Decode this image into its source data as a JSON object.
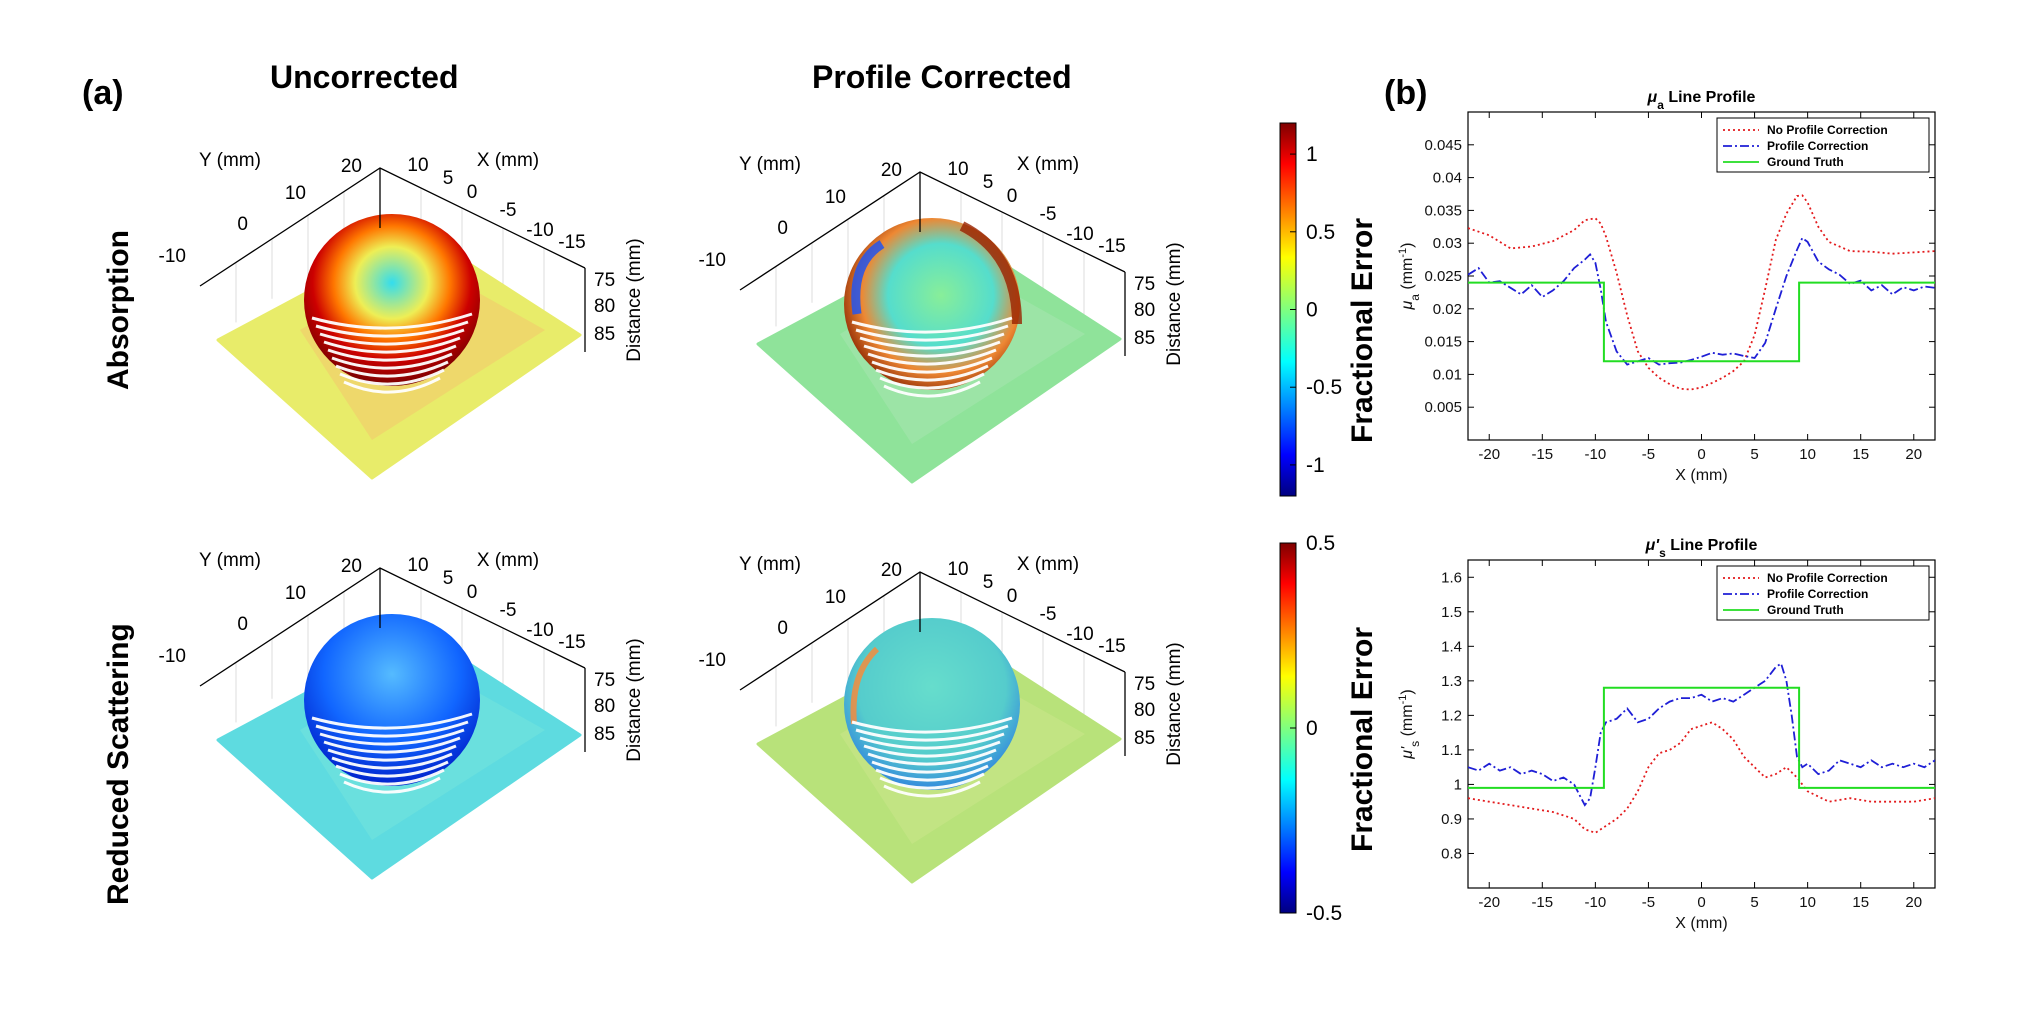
{
  "figure": {
    "label_a": "(a)",
    "label_b": "(b)",
    "col_uncorrected": "Uncorrected",
    "col_corrected": "Profile Corrected",
    "row_absorption": "Absorption",
    "row_scattering": "Reduced Scattering",
    "axis_y_mm": "Y (mm)",
    "axis_x_mm": "X (mm)",
    "axis_distance": "Distance (mm)",
    "fractional_error": "Fractional Error",
    "y_ticks_3d": [
      "20",
      "10",
      "0",
      "-10"
    ],
    "x_ticks_3d": [
      "10",
      "5",
      "0",
      "-5",
      "-10",
      "-15"
    ],
    "z_ticks_3d": [
      "75",
      "80",
      "85"
    ],
    "colorbar_top": {
      "ticks": [
        "1",
        "0.5",
        "0",
        "-0.5",
        "-1"
      ],
      "range": [
        -1.2,
        1.2
      ]
    },
    "colorbar_bottom": {
      "ticks": [
        "0.5",
        "0",
        "-0.5"
      ],
      "range": [
        -0.5,
        0.5
      ]
    },
    "colors": {
      "red": "#e31a1c",
      "blue": "#1f1fd6",
      "green": "#22dd22"
    }
  },
  "chart_data": [
    {
      "type": "line",
      "title_main": "μ",
      "title_sub": "a",
      "title_rest": " Line Profile",
      "xlabel": "X (mm)",
      "ylabel_main": "μ",
      "ylabel_sub": "a",
      "ylabel_unit_pre": " (mm",
      "ylabel_unit_sup": "-1",
      "ylabel_unit_post": ")",
      "xlim": [
        -22,
        22
      ],
      "ylim": [
        0,
        0.05
      ],
      "xticks": [
        -20,
        -15,
        -10,
        -5,
        0,
        5,
        10,
        15,
        20
      ],
      "yticks": [
        0.005,
        0.01,
        0.015,
        0.02,
        0.025,
        0.03,
        0.035,
        0.04,
        0.045
      ],
      "legend": "top-right",
      "series": [
        {
          "name": "No Profile Correction",
          "color": "#e31a1c",
          "dash": "2,3",
          "x": [
            -22,
            -20,
            -18,
            -16,
            -14,
            -12,
            -11,
            -10,
            -9.5,
            -9,
            -8,
            -7,
            -6,
            -5,
            -4,
            -3,
            -2,
            -1,
            0,
            1,
            2,
            3,
            4,
            5,
            6,
            7,
            8,
            9,
            9.5,
            10,
            11,
            12,
            14,
            16,
            18,
            20,
            22
          ],
          "y": [
            0.0323,
            0.0312,
            0.0292,
            0.0295,
            0.0303,
            0.032,
            0.0335,
            0.0338,
            0.033,
            0.031,
            0.0255,
            0.019,
            0.0135,
            0.011,
            0.0095,
            0.0085,
            0.0078,
            0.0077,
            0.008,
            0.0087,
            0.0095,
            0.0105,
            0.012,
            0.016,
            0.023,
            0.0305,
            0.0345,
            0.0372,
            0.0373,
            0.0362,
            0.0325,
            0.0302,
            0.0288,
            0.0287,
            0.0284,
            0.0286,
            0.0288
          ]
        },
        {
          "name": "Profile Correction",
          "color": "#1f1fd6",
          "dash": "9,3,2,3",
          "x": [
            -22,
            -21,
            -20,
            -19,
            -18,
            -17,
            -16,
            -15,
            -14,
            -13,
            -12,
            -11,
            -10.5,
            -10,
            -9.5,
            -9,
            -8,
            -7,
            -6,
            -5,
            -4,
            -3,
            -2,
            -1,
            0,
            1,
            2,
            3,
            4,
            5,
            6,
            7,
            8,
            9,
            9.5,
            10,
            11,
            12,
            13,
            14,
            15,
            16,
            17,
            18,
            19,
            20,
            21,
            22
          ],
          "y": [
            0.0252,
            0.0262,
            0.024,
            0.0242,
            0.0232,
            0.0222,
            0.0236,
            0.0218,
            0.0228,
            0.0242,
            0.0262,
            0.0275,
            0.0283,
            0.027,
            0.023,
            0.018,
            0.0135,
            0.0115,
            0.012,
            0.0125,
            0.0115,
            0.0117,
            0.0118,
            0.0122,
            0.0127,
            0.0133,
            0.013,
            0.0132,
            0.0128,
            0.0125,
            0.0148,
            0.02,
            0.025,
            0.029,
            0.0308,
            0.0302,
            0.0272,
            0.026,
            0.0252,
            0.0238,
            0.0243,
            0.0228,
            0.0236,
            0.0222,
            0.0233,
            0.0228,
            0.0234,
            0.0232
          ]
        },
        {
          "name": "Ground Truth",
          "color": "#22dd22",
          "dash": "",
          "x": [
            -22,
            -9.2,
            -9.2,
            9.2,
            9.2,
            22
          ],
          "y": [
            0.024,
            0.024,
            0.012,
            0.012,
            0.024,
            0.024
          ]
        }
      ]
    },
    {
      "type": "line",
      "title_main": "μ'",
      "title_sub": "s",
      "title_rest": " Line Profile",
      "xlabel": "X (mm)",
      "ylabel_main": "μ'",
      "ylabel_sub": "s",
      "ylabel_unit_pre": " (mm",
      "ylabel_unit_sup": "-1",
      "ylabel_unit_post": ")",
      "xlim": [
        -22,
        22
      ],
      "ylim": [
        0.7,
        1.65
      ],
      "xticks": [
        -20,
        -15,
        -10,
        -5,
        0,
        5,
        10,
        15,
        20
      ],
      "yticks": [
        0.8,
        0.9,
        1,
        1.1,
        1.2,
        1.3,
        1.4,
        1.5,
        1.6
      ],
      "legend": "top-right",
      "series": [
        {
          "name": "No Profile Correction",
          "color": "#e31a1c",
          "dash": "2,3",
          "x": [
            -22,
            -20,
            -18,
            -16,
            -14,
            -12,
            -11,
            -10,
            -9,
            -8,
            -7,
            -6,
            -5,
            -4,
            -3,
            -2,
            -1,
            0,
            1,
            2,
            3,
            4,
            5,
            6,
            7,
            8,
            9,
            10,
            12,
            14,
            16,
            18,
            20,
            22
          ],
          "y": [
            0.96,
            0.95,
            0.94,
            0.93,
            0.92,
            0.9,
            0.87,
            0.86,
            0.88,
            0.9,
            0.93,
            0.98,
            1.05,
            1.09,
            1.1,
            1.12,
            1.16,
            1.17,
            1.18,
            1.16,
            1.13,
            1.08,
            1.05,
            1.02,
            1.03,
            1.05,
            1.02,
            0.98,
            0.95,
            0.96,
            0.95,
            0.95,
            0.95,
            0.96
          ]
        },
        {
          "name": "Profile Correction",
          "color": "#1f1fd6",
          "dash": "9,3,2,3",
          "x": [
            -22,
            -21,
            -20,
            -19,
            -18,
            -17,
            -16,
            -15,
            -14,
            -13,
            -12,
            -11.5,
            -11,
            -10.5,
            -10,
            -9.5,
            -9,
            -8,
            -7,
            -6,
            -5,
            -4,
            -3,
            -2,
            -1,
            0,
            1,
            2,
            3,
            4,
            5,
            6,
            7,
            7.5,
            8,
            8.5,
            9,
            9.5,
            10,
            11,
            12,
            13,
            14,
            15,
            16,
            17,
            18,
            19,
            20,
            21,
            22
          ],
          "y": [
            1.05,
            1.04,
            1.06,
            1.04,
            1.05,
            1.03,
            1.04,
            1.03,
            1.01,
            1.02,
            1.0,
            0.97,
            0.94,
            0.96,
            1.05,
            1.15,
            1.18,
            1.19,
            1.22,
            1.18,
            1.19,
            1.22,
            1.24,
            1.25,
            1.25,
            1.26,
            1.24,
            1.25,
            1.24,
            1.26,
            1.28,
            1.3,
            1.34,
            1.35,
            1.3,
            1.2,
            1.08,
            1.05,
            1.06,
            1.03,
            1.04,
            1.07,
            1.06,
            1.05,
            1.07,
            1.05,
            1.06,
            1.05,
            1.06,
            1.05,
            1.07
          ]
        },
        {
          "name": "Ground Truth",
          "color": "#22dd22",
          "dash": "",
          "x": [
            -22,
            -9.2,
            -9.2,
            9.2,
            9.2,
            22
          ],
          "y": [
            0.99,
            0.99,
            1.28,
            1.28,
            0.99,
            0.99
          ]
        }
      ]
    }
  ]
}
